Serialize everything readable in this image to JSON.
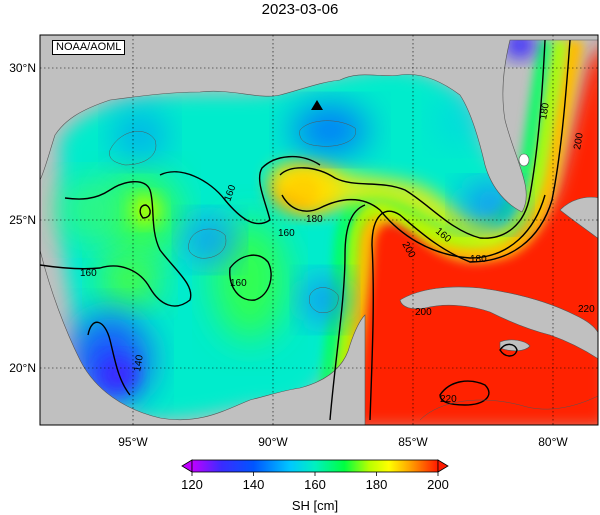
{
  "title": "2023-03-06",
  "credit": "NOAA/AOML",
  "lat_labels": [
    "30°N",
    "25°N",
    "20°N"
  ],
  "lon_labels": [
    "95°W",
    "90°W",
    "85°W",
    "80°W"
  ],
  "contour_labels": [
    "160",
    "160",
    "160",
    "160",
    "180",
    "180",
    "160",
    "200",
    "180",
    "200",
    "140",
    "200",
    "220",
    "220"
  ],
  "colorbar": {
    "ticks": [
      "120",
      "140",
      "160",
      "180",
      "200"
    ],
    "label": "SH [cm]",
    "range": [
      120,
      200
    ]
  },
  "colors": {
    "land": "#c0c0c0",
    "low": "#8a2be2",
    "high": "#ff1a00"
  },
  "marker": "triangle-marker"
}
